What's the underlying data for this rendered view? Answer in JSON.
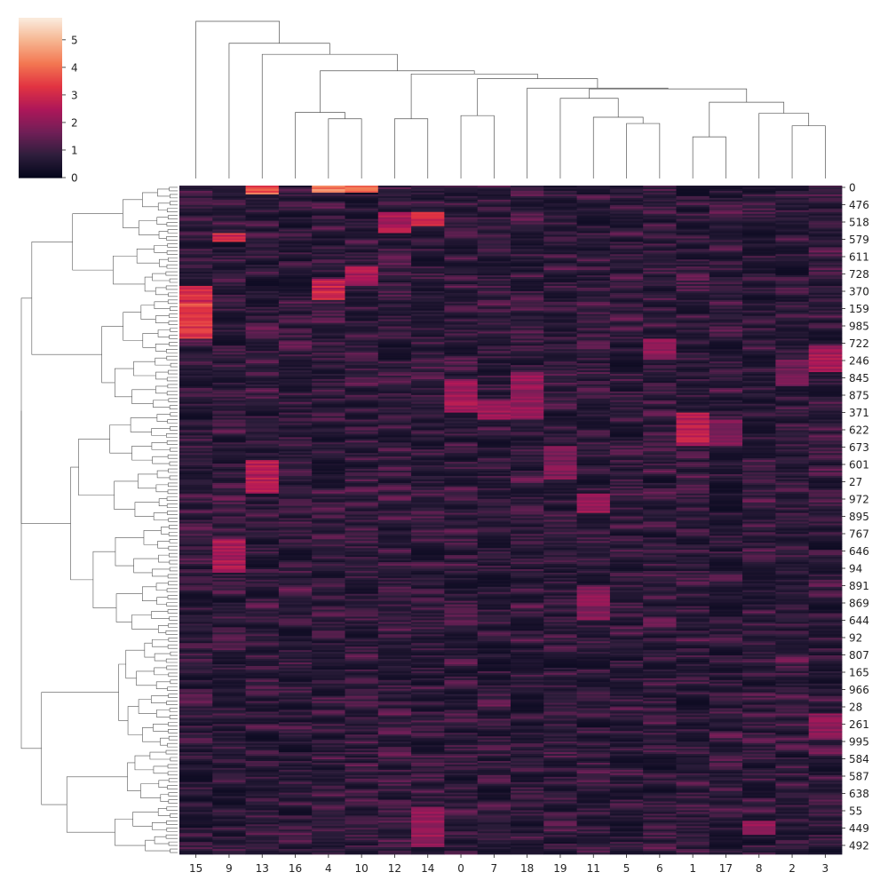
{
  "chart_data": {
    "type": "heatmap",
    "title": "",
    "xlabel": "",
    "ylabel": "",
    "column_order": [
      "15",
      "9",
      "13",
      "16",
      "4",
      "10",
      "12",
      "14",
      "0",
      "7",
      "18",
      "19",
      "11",
      "5",
      "6",
      "1",
      "17",
      "8",
      "2",
      "3"
    ],
    "row_tick_labels": [
      "0",
      "476",
      "518",
      "579",
      "611",
      "728",
      "370",
      "159",
      "985",
      "722",
      "246",
      "845",
      "875",
      "371",
      "622",
      "673",
      "601",
      "27",
      "972",
      "895",
      "767",
      "646",
      "94",
      "891",
      "869",
      "644",
      "92",
      "807",
      "165",
      "966",
      "28",
      "261",
      "995",
      "584",
      "587",
      "638",
      "55",
      "449",
      "492"
    ],
    "row_count": 1000,
    "colorbar": {
      "min": 0,
      "max": 5.8,
      "ticks": [
        "0",
        "1",
        "2",
        "3",
        "4",
        "5"
      ],
      "colormap": "rocket",
      "colors": [
        "#03051a",
        "#2e1e3c",
        "#701f57",
        "#ad1759",
        "#e13342",
        "#f37651",
        "#f6b48f",
        "#faebdd"
      ]
    },
    "highlights": [
      {
        "column": "15",
        "rows": [
          0.15,
          0.23
        ],
        "value": 3.4,
        "note": "rows 159-985"
      },
      {
        "column": "15",
        "rows": [
          0.176,
          0.18
        ],
        "value": 4.6
      },
      {
        "column": "9",
        "rows": [
          0.07,
          0.085
        ],
        "value": 3.2
      },
      {
        "column": "9",
        "rows": [
          0.53,
          0.58
        ],
        "value": 2.6
      },
      {
        "column": "13",
        "rows": [
          0.41,
          0.46
        ],
        "value": 2.8
      },
      {
        "column": "13",
        "rows": [
          0.0,
          0.012
        ],
        "value": 4.0
      },
      {
        "column": "4",
        "rows": [
          0.14,
          0.17
        ],
        "value": 3.2
      },
      {
        "column": "4",
        "rows": [
          0.0,
          0.01
        ],
        "value": 4.5
      },
      {
        "column": "10",
        "rows": [
          0.12,
          0.15
        ],
        "value": 2.6
      },
      {
        "column": "10",
        "rows": [
          0.0,
          0.01
        ],
        "value": 4.5
      },
      {
        "column": "12",
        "rows": [
          0.04,
          0.07
        ],
        "value": 2.6
      },
      {
        "column": "14",
        "rows": [
          0.04,
          0.06
        ],
        "value": 3.4
      },
      {
        "column": "14",
        "rows": [
          0.93,
          0.99
        ],
        "value": 2.4
      },
      {
        "column": "0",
        "rows": [
          0.29,
          0.34
        ],
        "value": 2.5
      },
      {
        "column": "7",
        "rows": [
          0.32,
          0.35
        ],
        "value": 2.4
      },
      {
        "column": "18",
        "rows": [
          0.28,
          0.35
        ],
        "value": 2.3
      },
      {
        "column": "1",
        "rows": [
          0.34,
          0.39
        ],
        "value": 2.8
      },
      {
        "column": "17",
        "rows": [
          0.35,
          0.39
        ],
        "value": 2.0
      },
      {
        "column": "11",
        "rows": [
          0.46,
          0.49
        ],
        "value": 2.4
      },
      {
        "column": "11",
        "rows": [
          0.6,
          0.65
        ],
        "value": 2.1
      },
      {
        "column": "6",
        "rows": [
          0.23,
          0.26
        ],
        "value": 2.4
      },
      {
        "column": "3",
        "rows": [
          0.24,
          0.28
        ],
        "value": 2.6
      },
      {
        "column": "3",
        "rows": [
          0.79,
          0.83
        ],
        "value": 2.2
      },
      {
        "column": "8",
        "rows": [
          0.95,
          0.97
        ],
        "value": 2.4
      },
      {
        "column": "19",
        "rows": [
          0.39,
          0.44
        ],
        "value": 2.0
      },
      {
        "column": "2",
        "rows": [
          0.26,
          0.3
        ],
        "value": 1.8
      }
    ],
    "column_dendrogram": {
      "merges": [
        {
          "children": [
            "4",
            "10"
          ],
          "height": 0.76
        },
        {
          "children": [
            "16",
            "c0"
          ],
          "height": 0.84
        },
        {
          "children": [
            "12",
            "14"
          ],
          "height": 0.76
        },
        {
          "children": [
            "0",
            "7"
          ],
          "height": 0.8
        },
        {
          "children": [
            "5",
            "6"
          ],
          "height": 0.7
        },
        {
          "children": [
            "2",
            "3"
          ],
          "height": 0.67
        },
        {
          "children": [
            "1",
            "17"
          ],
          "height": 0.53
        },
        {
          "children": [
            "11",
            "c4"
          ],
          "height": 0.78
        },
        {
          "children": [
            "8",
            "c5"
          ],
          "height": 0.83
        },
        {
          "children": [
            "c6",
            "c8"
          ],
          "height": 0.97
        },
        {
          "children": [
            "19",
            "c7"
          ],
          "height": 1.02
        },
        {
          "children": [
            "c9",
            "c10"
          ],
          "height": 1.14
        },
        {
          "children": [
            "18",
            "c11"
          ],
          "height": 1.15
        },
        {
          "children": [
            "c3",
            "c12"
          ],
          "height": 1.27
        },
        {
          "children": [
            "c2",
            "c13"
          ],
          "height": 1.33
        },
        {
          "children": [
            "c1",
            "c14"
          ],
          "height": 1.37
        },
        {
          "children": [
            "13",
            "c15"
          ],
          "height": 1.58
        },
        {
          "children": [
            "9",
            "c16"
          ],
          "height": 1.72
        },
        {
          "children": [
            "15",
            "c17"
          ],
          "height": 2.0
        }
      ]
    }
  }
}
